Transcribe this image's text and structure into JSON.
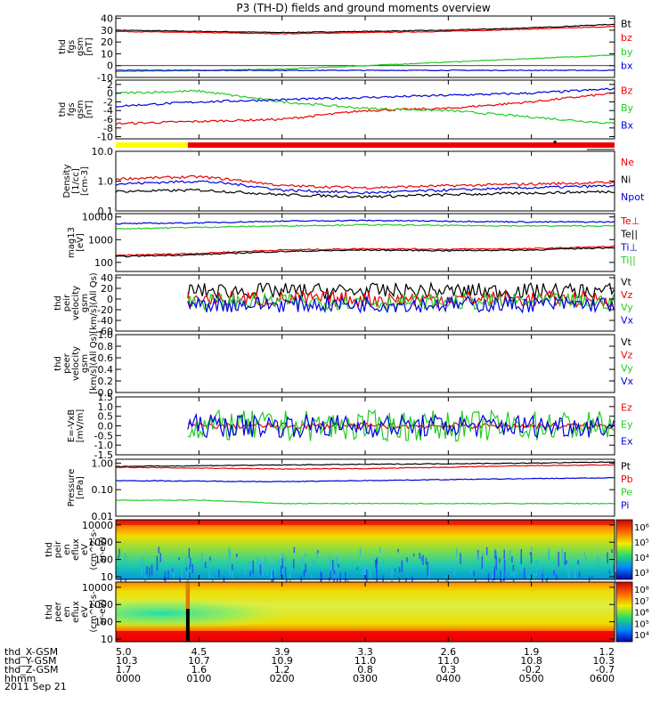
{
  "title": "P3 (TH-D) fields and ground moments overview",
  "date_label": "2011 Sep 21",
  "colors": {
    "black": "#000000",
    "red": "#ee0000",
    "green": "#22cc22",
    "blue": "#0000dd",
    "yellow": "#ffff00",
    "bar_red": "#ee0000"
  },
  "time_axis": {
    "ticks": [
      "0000",
      "0100",
      "0200",
      "0300",
      "0400",
      "0500",
      "0600"
    ],
    "rows": [
      {
        "label": "thd_X-GSM",
        "values": [
          "5.0",
          "4.5",
          "3.9",
          "3.3",
          "2.6",
          "1.9",
          "1.2"
        ]
      },
      {
        "label": "thd_Y-GSM",
        "values": [
          "10.3",
          "10.7",
          "10.9",
          "11.0",
          "11.0",
          "10.8",
          "10.3"
        ]
      },
      {
        "label": "thd_Z-GSM",
        "values": [
          "1.7",
          "1.6",
          "1.2",
          "0.8",
          "0.3",
          "-0.2",
          "-0.7"
        ]
      },
      {
        "label": "hhmm",
        "values": [
          "0000",
          "0100",
          "0200",
          "0300",
          "0400",
          "0500",
          "0600"
        ]
      }
    ]
  },
  "chart_data": [
    {
      "type": "line",
      "id": "fgs",
      "ylabel": [
        "thd",
        "fgs",
        "gsm",
        "[nT]"
      ],
      "ylim": [
        -10,
        42
      ],
      "yticks": [
        "40",
        "30",
        "20",
        "10",
        "0",
        "-10"
      ],
      "ytick_values": [
        40,
        30,
        20,
        10,
        0,
        -10
      ],
      "x": [
        "0000",
        "0100",
        "0200",
        "0300",
        "0400",
        "0500",
        "0600"
      ],
      "series": [
        {
          "name": "Bt",
          "color": "black",
          "values": [
            30,
            29,
            28,
            29,
            30,
            32,
            35
          ]
        },
        {
          "name": "bz",
          "color": "red",
          "values": [
            29,
            28,
            27,
            28,
            29,
            31,
            33
          ]
        },
        {
          "name": "by",
          "color": "green",
          "values": [
            -5,
            -4,
            -3,
            0,
            3,
            6,
            9
          ]
        },
        {
          "name": "bx",
          "color": "blue",
          "values": [
            -4,
            -4,
            -4,
            -4,
            -4,
            -4,
            -4
          ]
        }
      ]
    },
    {
      "type": "line",
      "id": "fgs_zoom",
      "ylabel": [
        "thd",
        "fgs",
        "gsm",
        "[nT]"
      ],
      "ylim": [
        -10.5,
        3
      ],
      "yticks": [
        "2",
        "0",
        "-2",
        "-4",
        "-6",
        "-8",
        "-10"
      ],
      "ytick_values": [
        2,
        0,
        -2,
        -4,
        -6,
        -8,
        -10
      ],
      "x": [
        "0000",
        "0100",
        "0200",
        "0300",
        "0400",
        "0500",
        "0600"
      ],
      "series": [
        {
          "name": "Bz",
          "color": "red",
          "values": [
            -7,
            -6.5,
            -6,
            -4,
            -3.5,
            -2,
            0
          ]
        },
        {
          "name": "By",
          "color": "green",
          "values": [
            0,
            0.5,
            -2,
            -3.5,
            -4,
            -5.5,
            -7
          ]
        },
        {
          "name": "Bx",
          "color": "blue",
          "values": [
            -3,
            -2,
            -1.5,
            -1,
            -0.5,
            0,
            1
          ]
        }
      ]
    },
    {
      "type": "line",
      "id": "density",
      "ylabel": [
        "Density",
        "[1/cc]",
        "[cm-3]"
      ],
      "yscale": "log",
      "ylim": [
        0.1,
        10
      ],
      "yticks": [
        "10.0",
        "1.0",
        "0.1"
      ],
      "ytick_values": [
        10,
        1,
        0.1
      ],
      "x": [
        "0000",
        "0100",
        "0200",
        "0300",
        "0400",
        "0500",
        "0600"
      ],
      "series": [
        {
          "name": "Ne",
          "color": "red",
          "values": [
            1.2,
            1.4,
            0.7,
            0.6,
            0.7,
            0.8,
            0.9
          ]
        },
        {
          "name": "Ni",
          "color": "black",
          "values": [
            0.45,
            0.5,
            0.35,
            0.3,
            0.35,
            0.4,
            0.45
          ]
        },
        {
          "name": "Npot",
          "color": "blue",
          "values": [
            0.8,
            1.0,
            0.5,
            0.4,
            0.5,
            0.6,
            0.7
          ]
        }
      ]
    },
    {
      "type": "line",
      "id": "temperature",
      "ylabel": [
        "mag13",
        "[eV]"
      ],
      "yscale": "log",
      "ylim": [
        40,
        14000
      ],
      "yticks": [
        "10000",
        "1000",
        "100"
      ],
      "ytick_values": [
        10000,
        1000,
        100
      ],
      "x": [
        "0000",
        "0100",
        "0200",
        "0300",
        "0400",
        "0500",
        "0600"
      ],
      "series": [
        {
          "name": "Te⊥",
          "color": "red",
          "values": [
            200,
            250,
            350,
            400,
            380,
            400,
            500
          ]
        },
        {
          "name": "Te||",
          "color": "black",
          "values": [
            180,
            220,
            300,
            350,
            330,
            350,
            450
          ]
        },
        {
          "name": "Ti⊥",
          "color": "blue",
          "values": [
            5000,
            5500,
            6500,
            7000,
            6500,
            6000,
            6000
          ]
        },
        {
          "name": "Ti||",
          "color": "green",
          "values": [
            3000,
            3500,
            4000,
            4500,
            4200,
            4000,
            4000
          ]
        }
      ]
    },
    {
      "type": "line",
      "id": "peir_velocity",
      "ylabel": [
        "thd",
        "peir",
        "velocity",
        "gsm",
        "[km/s](All Qs)"
      ],
      "ylim": [
        -60,
        45
      ],
      "yticks": [
        "40",
        "20",
        "0",
        "-20",
        "-40",
        "-60"
      ],
      "ytick_values": [
        40,
        20,
        0,
        -20,
        -40,
        -60
      ],
      "data_start": "0052",
      "series": [
        {
          "name": "Vt",
          "color": "black",
          "values": [
            15,
            15,
            15,
            15,
            15
          ]
        },
        {
          "name": "Vz",
          "color": "red",
          "values": [
            0,
            0,
            0,
            0,
            0
          ]
        },
        {
          "name": "Vy",
          "color": "green",
          "values": [
            -5,
            -5,
            -5,
            -5,
            -5
          ]
        },
        {
          "name": "Vx",
          "color": "blue",
          "values": [
            -10,
            -10,
            -10,
            -10,
            -10
          ]
        }
      ]
    },
    {
      "type": "line",
      "id": "peer_velocity",
      "ylabel": [
        "thd",
        "peer",
        "velocity",
        "gsm",
        "[km/s](All Qs)"
      ],
      "ylim": [
        0,
        1.0
      ],
      "yticks": [
        "1.0",
        "0.8",
        "0.6",
        "0.4",
        "0.2",
        "0.0"
      ],
      "ytick_values": [
        1.0,
        0.8,
        0.6,
        0.4,
        0.2,
        0.0
      ],
      "series": [
        {
          "name": "Vt",
          "color": "black",
          "values": []
        },
        {
          "name": "Vz",
          "color": "red",
          "values": []
        },
        {
          "name": "Vy",
          "color": "green",
          "values": []
        },
        {
          "name": "Vx",
          "color": "blue",
          "values": []
        }
      ]
    },
    {
      "type": "line",
      "id": "efield",
      "ylabel": [
        "E=-VxB",
        "[mV/m]"
      ],
      "ylim": [
        -1.5,
        1.5
      ],
      "yticks": [
        "1.5",
        "1.0",
        "0.5",
        "0.0",
        "-0.5",
        "-1.0",
        "-1.5"
      ],
      "ytick_values": [
        1.5,
        1.0,
        0.5,
        0.0,
        -0.5,
        -1.0,
        -1.5
      ],
      "data_start": "0052",
      "series": [
        {
          "name": "Ez",
          "color": "red",
          "values": [
            0,
            0,
            0,
            0,
            0
          ]
        },
        {
          "name": "Ey",
          "color": "green",
          "values": [
            0,
            0,
            0,
            0,
            0
          ]
        },
        {
          "name": "Ex",
          "color": "blue",
          "values": [
            0,
            0,
            0,
            0,
            0
          ]
        }
      ]
    },
    {
      "type": "line",
      "id": "pressure",
      "ylabel": [
        "Pressure",
        "[nPa]"
      ],
      "yscale": "log",
      "ylim": [
        0.01,
        1.4
      ],
      "yticks": [
        "1.00",
        "0.10",
        "0.01"
      ],
      "ytick_values": [
        1,
        0.1,
        0.01
      ],
      "x": [
        "0000",
        "0100",
        "0200",
        "0300",
        "0400",
        "0500",
        "0600"
      ],
      "series": [
        {
          "name": "Pt",
          "color": "black",
          "values": [
            0.75,
            0.8,
            0.85,
            0.9,
            0.95,
            1.0,
            1.1
          ]
        },
        {
          "name": "Pb",
          "color": "red",
          "values": [
            0.7,
            0.65,
            0.6,
            0.62,
            0.7,
            0.8,
            0.85
          ]
        },
        {
          "name": "Pe",
          "color": "green",
          "values": [
            0.04,
            0.04,
            0.03,
            0.03,
            0.03,
            0.03,
            0.03
          ]
        },
        {
          "name": "Pi",
          "color": "blue",
          "values": [
            0.22,
            0.21,
            0.2,
            0.22,
            0.24,
            0.26,
            0.28
          ]
        }
      ]
    },
    {
      "type": "heatmap",
      "id": "peir_spectrogram",
      "ylabel": [
        "thd",
        "peir",
        "en",
        "eflux",
        "eV",
        "(cm^2-s-",
        "sr-eV)"
      ],
      "yscale": "log",
      "ylim": [
        7,
        20000
      ],
      "yticks": [
        "10000",
        "1000",
        "100",
        "10"
      ],
      "ytick_values": [
        10000,
        1000,
        100,
        10
      ],
      "colorbar": {
        "ticks": [
          "10⁶",
          "10⁵",
          "10⁴",
          "10³"
        ],
        "range": [
          1000,
          1000000
        ],
        "scale": "log"
      }
    },
    {
      "type": "heatmap",
      "id": "peer_spectrogram",
      "ylabel": [
        "thd",
        "peer",
        "en",
        "eflux",
        "eV",
        "(cm^2-s-",
        "sr-eV)"
      ],
      "yscale": "log",
      "ylim": [
        7,
        20000
      ],
      "yticks": [
        "10000",
        "1000",
        "100",
        "10"
      ],
      "ytick_values": [
        10000,
        1000,
        100,
        10
      ],
      "colorbar": {
        "ticks": [
          "10⁸",
          "10⁷",
          "10⁶",
          "10⁵",
          "10⁴"
        ],
        "range": [
          3000,
          100000000
        ],
        "scale": "log"
      }
    }
  ]
}
